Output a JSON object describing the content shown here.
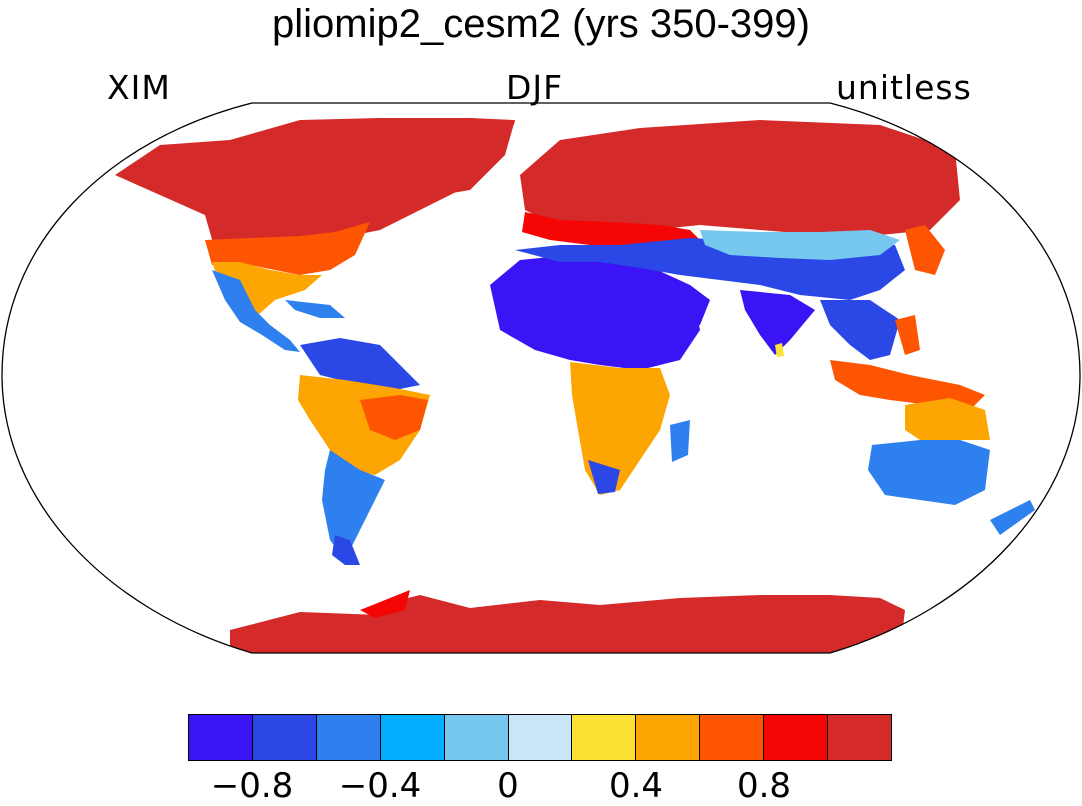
{
  "title": "pliomip2_cesm2 (yrs 350-399)",
  "subtitle_left": "XIM",
  "subtitle_center": "DJF",
  "subtitle_right": "unitless",
  "colorbar": {
    "colors": [
      "#3a14f5",
      "#2b48e6",
      "#2f80ef",
      "#05adff",
      "#77c8ee",
      "#c8e6f7",
      "#fde236",
      "#fda502",
      "#fd5502",
      "#f50503",
      "#d42a2a"
    ],
    "tick_labels": [
      "−0.8",
      "−0.4",
      "0",
      "0.4",
      "0.8"
    ]
  },
  "legend_values": {
    "bounds": [
      -1.0,
      -0.8,
      -0.6,
      -0.4,
      -0.2,
      0,
      0.2,
      0.4,
      0.6,
      0.8,
      1.0
    ],
    "ticks": [
      -0.8,
      -0.4,
      0,
      0.4,
      0.8
    ]
  }
}
